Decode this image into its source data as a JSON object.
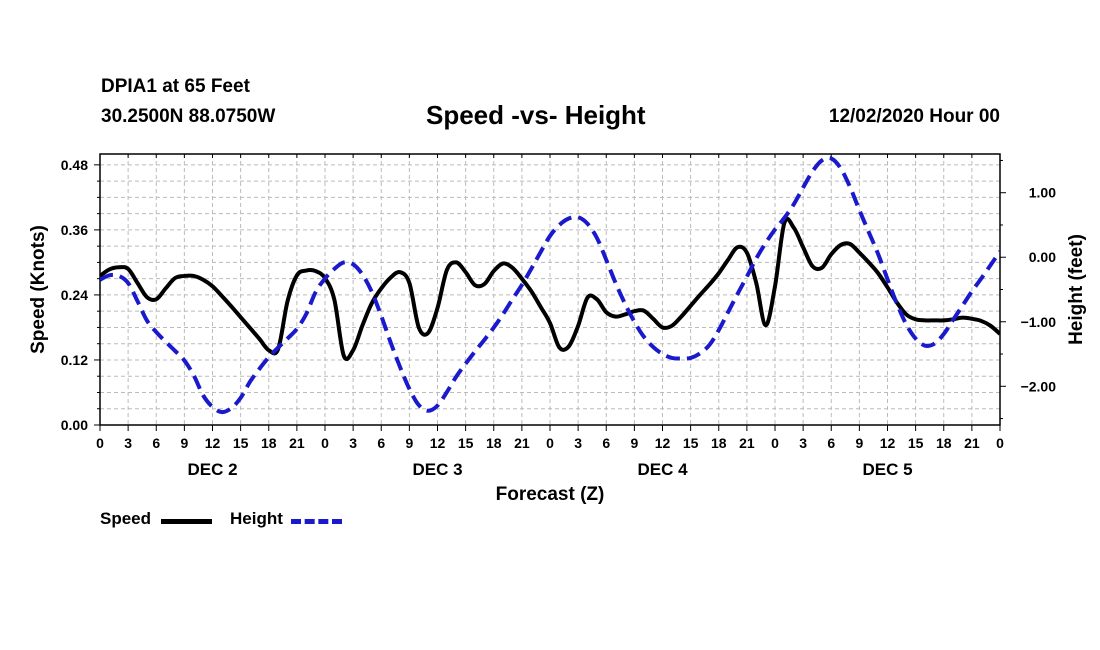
{
  "header": {
    "station": "DPIA1 at 65 Feet",
    "coordinates": "30.2500N 88.0750W",
    "title": "Speed -vs- Height",
    "datetime": "12/02/2020 Hour 00"
  },
  "legend": {
    "speed_label": "Speed",
    "height_label": "Height"
  },
  "colors": {
    "speed": "#000000",
    "height": "#1a1acc",
    "grid": "#bbbbbb"
  },
  "chart_data": {
    "type": "line",
    "title": "Speed -vs- Height",
    "xlabel": "Forecast (Z)",
    "ylabel": "Speed (Knots)",
    "y2label": "Height (feet)",
    "xlim": [
      0,
      96
    ],
    "ylim": [
      0,
      0.5
    ],
    "y2lim": [
      -2.6,
      1.6
    ],
    "x_tick_step": 3,
    "x_tick_labels": [
      "0",
      "3",
      "6",
      "9",
      "12",
      "15",
      "18",
      "21",
      "0",
      "3",
      "6",
      "9",
      "12",
      "15",
      "18",
      "21",
      "0",
      "3",
      "6",
      "9",
      "12",
      "15",
      "18",
      "21",
      "0",
      "3",
      "6",
      "9",
      "12",
      "15",
      "18",
      "21",
      "0"
    ],
    "day_labels": [
      {
        "label": "DEC 2",
        "x": 12
      },
      {
        "label": "DEC 3",
        "x": 36
      },
      {
        "label": "DEC 4",
        "x": 60
      },
      {
        "label": "DEC 5",
        "x": 84
      }
    ],
    "y_ticks": [
      0.0,
      0.12,
      0.24,
      0.36,
      0.48
    ],
    "y_tick_labels": [
      "0.00",
      "0.12",
      "0.24",
      "0.36",
      "0.48"
    ],
    "y2_ticks": [
      1.0,
      0.0,
      -1.0,
      -2.0
    ],
    "y2_tick_labels": [
      "1.00",
      "0.00",
      "−1.00",
      "−2.00"
    ],
    "grid": true,
    "series": [
      {
        "name": "Speed",
        "axis": "left",
        "style": "solid",
        "x": [
          0,
          1,
          2,
          3,
          4,
          5,
          6,
          7,
          8,
          9,
          10,
          11,
          12,
          13,
          14,
          15,
          16,
          17,
          18,
          19,
          20,
          21,
          22,
          23,
          24,
          25,
          26,
          27,
          28,
          29,
          30,
          31,
          32,
          33,
          34,
          35,
          36,
          37,
          38,
          39,
          40,
          41,
          42,
          43,
          44,
          45,
          46,
          47,
          48,
          49,
          50,
          51,
          52,
          53,
          54,
          55,
          56,
          57,
          58,
          59,
          60,
          61,
          62,
          63,
          64,
          65,
          66,
          67,
          68,
          69,
          70,
          71,
          72,
          73,
          74,
          75,
          76,
          77,
          78,
          79,
          80,
          81,
          82,
          83,
          84,
          85,
          86,
          87,
          88,
          89,
          90,
          91,
          92,
          93,
          94,
          95,
          96
        ],
        "values": [
          0.275,
          0.287,
          0.291,
          0.288,
          0.262,
          0.236,
          0.232,
          0.252,
          0.271,
          0.275,
          0.275,
          0.268,
          0.256,
          0.238,
          0.219,
          0.199,
          0.179,
          0.159,
          0.138,
          0.14,
          0.228,
          0.276,
          0.285,
          0.284,
          0.271,
          0.231,
          0.128,
          0.138,
          0.184,
          0.225,
          0.252,
          0.272,
          0.282,
          0.262,
          0.18,
          0.17,
          0.216,
          0.286,
          0.3,
          0.282,
          0.258,
          0.26,
          0.284,
          0.298,
          0.29,
          0.27,
          0.247,
          0.218,
          0.188,
          0.143,
          0.145,
          0.183,
          0.235,
          0.232,
          0.208,
          0.2,
          0.204,
          0.21,
          0.211,
          0.196,
          0.18,
          0.183,
          0.2,
          0.22,
          0.24,
          0.259,
          0.28,
          0.305,
          0.328,
          0.318,
          0.262,
          0.184,
          0.256,
          0.373,
          0.364,
          0.328,
          0.293,
          0.29,
          0.315,
          0.332,
          0.334,
          0.318,
          0.3,
          0.28,
          0.254,
          0.226,
          0.204,
          0.195,
          0.193,
          0.193,
          0.193,
          0.195,
          0.198,
          0.196,
          0.192,
          0.183,
          0.168
        ]
      },
      {
        "name": "Height",
        "axis": "right",
        "style": "dashed",
        "x": [
          0,
          1,
          2,
          3,
          4,
          5,
          6,
          7,
          8,
          9,
          10,
          11,
          12,
          13,
          14,
          15,
          16,
          17,
          18,
          19,
          20,
          21,
          22,
          23,
          24,
          25,
          26,
          27,
          28,
          29,
          30,
          31,
          32,
          33,
          34,
          35,
          36,
          37,
          38,
          39,
          40,
          41,
          42,
          43,
          44,
          45,
          46,
          47,
          48,
          49,
          50,
          51,
          52,
          53,
          54,
          55,
          56,
          57,
          58,
          59,
          60,
          61,
          62,
          63,
          64,
          65,
          66,
          67,
          68,
          69,
          70,
          71,
          72,
          73,
          74,
          75,
          76,
          77,
          78,
          79,
          80,
          81,
          82,
          83,
          84,
          85,
          86,
          87,
          88,
          89,
          90,
          91,
          92,
          93,
          94,
          95,
          96
        ],
        "values": [
          -0.35,
          -0.28,
          -0.29,
          -0.4,
          -0.68,
          -0.98,
          -1.16,
          -1.31,
          -1.45,
          -1.6,
          -1.83,
          -2.14,
          -2.32,
          -2.4,
          -2.34,
          -2.18,
          -1.93,
          -1.73,
          -1.55,
          -1.4,
          -1.26,
          -1.11,
          -0.88,
          -0.54,
          -0.33,
          -0.18,
          -0.08,
          -0.11,
          -0.27,
          -0.54,
          -0.91,
          -1.32,
          -1.7,
          -2.04,
          -2.29,
          -2.38,
          -2.3,
          -2.09,
          -1.85,
          -1.65,
          -1.46,
          -1.28,
          -1.09,
          -0.88,
          -0.65,
          -0.43,
          -0.18,
          0.08,
          0.33,
          0.5,
          0.6,
          0.62,
          0.52,
          0.3,
          -0.04,
          -0.4,
          -0.72,
          -1.0,
          -1.23,
          -1.39,
          -1.5,
          -1.56,
          -1.57,
          -1.56,
          -1.49,
          -1.36,
          -1.13,
          -0.85,
          -0.57,
          -0.3,
          -0.02,
          0.22,
          0.43,
          0.61,
          0.82,
          1.08,
          1.33,
          1.5,
          1.53,
          1.38,
          1.09,
          0.73,
          0.39,
          0.05,
          -0.34,
          -0.72,
          -1.04,
          -1.26,
          -1.37,
          -1.34,
          -1.19,
          -0.97,
          -0.75,
          -0.53,
          -0.33,
          -0.12,
          0.09
        ]
      }
    ]
  }
}
